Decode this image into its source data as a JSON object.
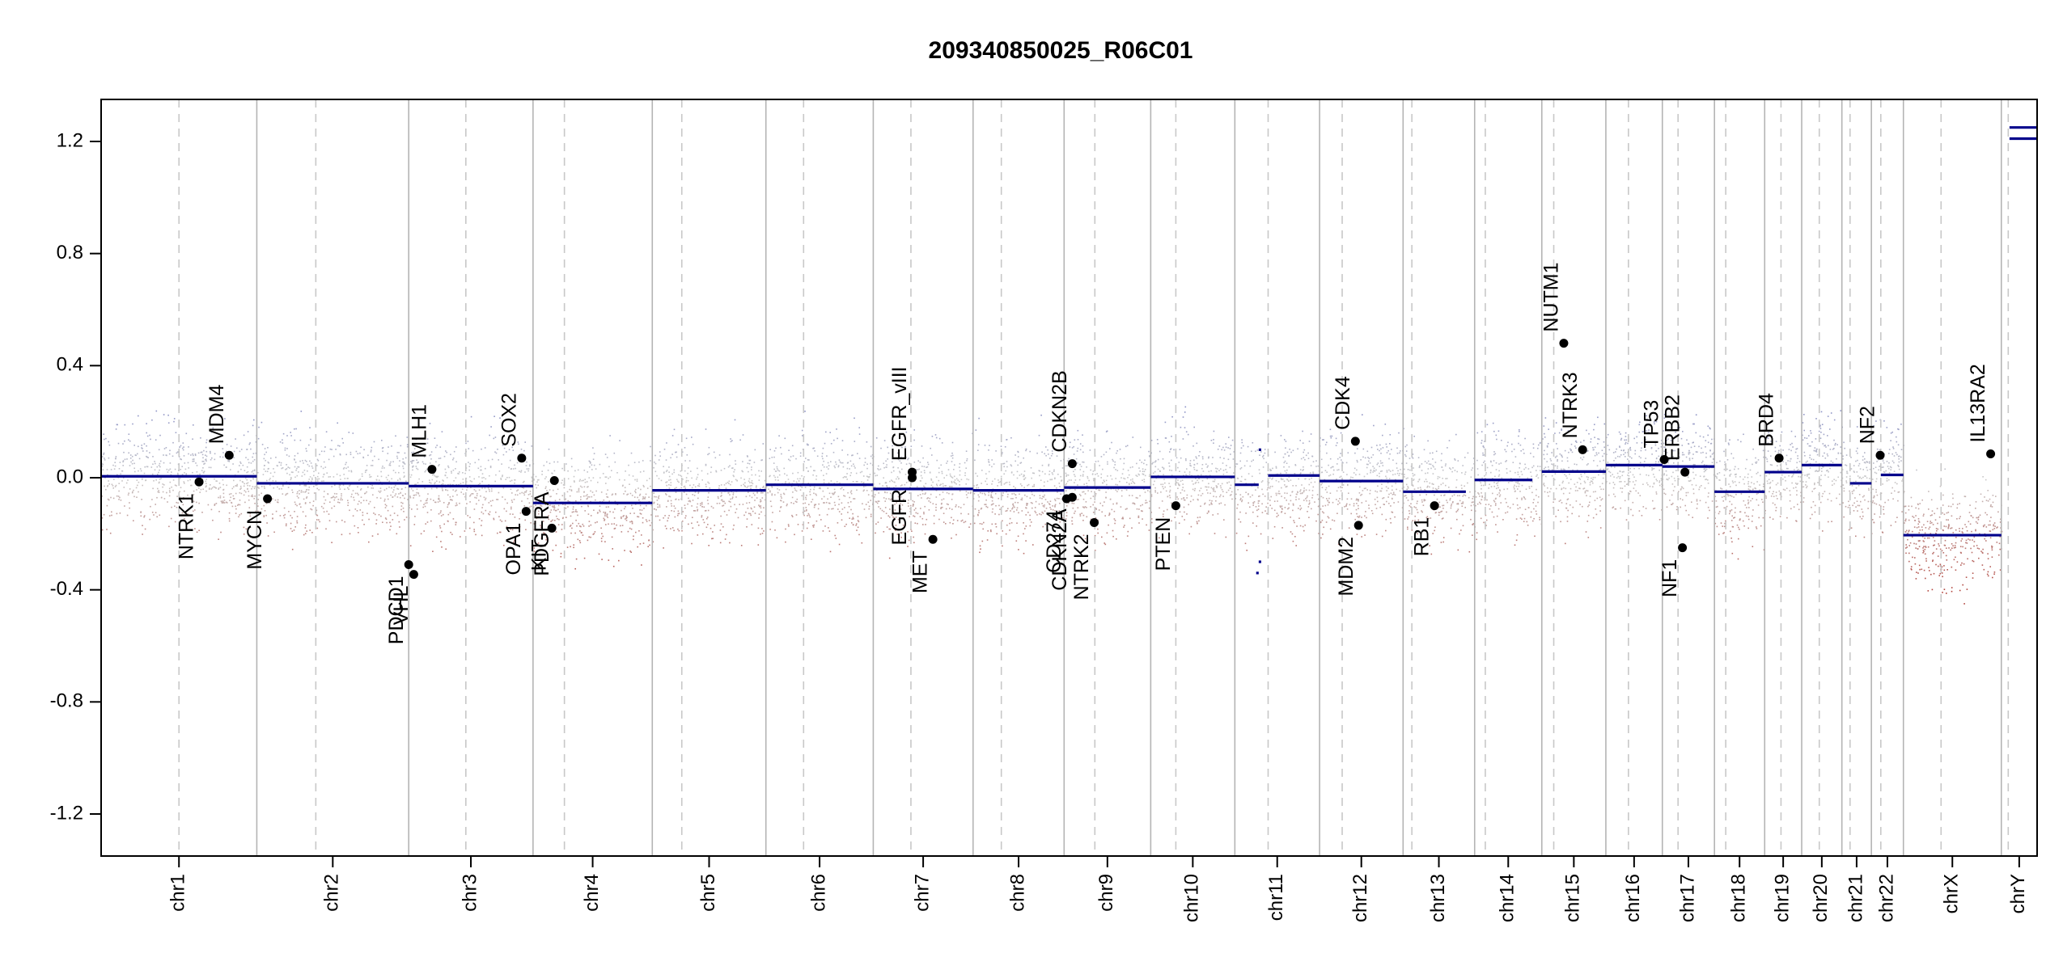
{
  "chart_data": {
    "type": "scatter",
    "title": "209340850025_R06C01",
    "xlabel": "",
    "ylabel": "",
    "ylim": [
      -1.35,
      1.35
    ],
    "y_ticks": [
      "-1.2",
      "-0.8",
      "-0.4",
      "0.0",
      "0.4",
      "0.8",
      "1.2"
    ],
    "y_tick_values": [
      -1.2,
      -0.8,
      -0.4,
      0.0,
      0.4,
      0.8,
      1.2
    ],
    "colors": {
      "gain": "#7f86c6",
      "loss": "#b2443c",
      "neutral": "#c8c8c8",
      "segment": "#00008b",
      "separator": "#b4b4b4",
      "centromere": "#c8c8c8",
      "gene": "#000000"
    },
    "chromosomes": [
      {
        "name": "chr1",
        "start": 0,
        "end": 248,
        "centromere": 124
      },
      {
        "name": "chr2",
        "start": 248,
        "end": 490,
        "centromere": 342
      },
      {
        "name": "chr3",
        "start": 490,
        "end": 688,
        "centromere": 581
      },
      {
        "name": "chr4",
        "start": 688,
        "end": 878,
        "centromere": 738
      },
      {
        "name": "chr5",
        "start": 878,
        "end": 1059,
        "centromere": 925
      },
      {
        "name": "chr6",
        "start": 1059,
        "end": 1230,
        "centromere": 1119
      },
      {
        "name": "chr7",
        "start": 1230,
        "end": 1389,
        "centromere": 1290
      },
      {
        "name": "chr8",
        "start": 1389,
        "end": 1534,
        "centromere": 1434
      },
      {
        "name": "chr9",
        "start": 1534,
        "end": 1672,
        "centromere": 1583
      },
      {
        "name": "chr10",
        "start": 1672,
        "end": 1806,
        "centromere": 1712
      },
      {
        "name": "chr11",
        "start": 1806,
        "end": 1941,
        "centromere": 1859
      },
      {
        "name": "chr12",
        "start": 1941,
        "end": 2074,
        "centromere": 1977
      },
      {
        "name": "chr13",
        "start": 2074,
        "end": 2188,
        "centromere": 2088
      },
      {
        "name": "chr14",
        "start": 2188,
        "end": 2295,
        "centromere": 2205
      },
      {
        "name": "chr15",
        "start": 2295,
        "end": 2397,
        "centromere": 2314
      },
      {
        "name": "chr16",
        "start": 2397,
        "end": 2487,
        "centromere": 2433
      },
      {
        "name": "chr17",
        "start": 2487,
        "end": 2570,
        "centromere": 2512
      },
      {
        "name": "chr18",
        "start": 2570,
        "end": 2650,
        "centromere": 2588
      },
      {
        "name": "chr19",
        "start": 2650,
        "end": 2709,
        "centromere": 2676
      },
      {
        "name": "chr20",
        "start": 2709,
        "end": 2773,
        "centromere": 2737
      },
      {
        "name": "chr21",
        "start": 2773,
        "end": 2820,
        "centromere": 2786
      },
      {
        "name": "chr22",
        "start": 2820,
        "end": 2871,
        "centromere": 2835
      },
      {
        "name": "chrX",
        "start": 2871,
        "end": 3027,
        "centromere": 2931
      },
      {
        "name": "chrY",
        "start": 3027,
        "end": 3084,
        "centromere": 3038
      }
    ],
    "segments": [
      {
        "chrom": "chr1",
        "start": 0,
        "end": 248,
        "value": 0.005
      },
      {
        "chrom": "chr2",
        "start": 248,
        "end": 490,
        "value": -0.02
      },
      {
        "chrom": "chr3",
        "start": 490,
        "end": 688,
        "value": -0.03
      },
      {
        "chrom": "chr4",
        "start": 688,
        "end": 878,
        "value": -0.09
      },
      {
        "chrom": "chr5",
        "start": 878,
        "end": 1059,
        "value": -0.045
      },
      {
        "chrom": "chr6",
        "start": 1059,
        "end": 1230,
        "value": -0.025
      },
      {
        "chrom": "chr7",
        "start": 1230,
        "end": 1389,
        "value": -0.04
      },
      {
        "chrom": "chr8",
        "start": 1389,
        "end": 1534,
        "value": -0.045
      },
      {
        "chrom": "chr9",
        "start": 1534,
        "end": 1672,
        "value": -0.035
      },
      {
        "chrom": "chr10",
        "start": 1672,
        "end": 1806,
        "value": 0.003
      },
      {
        "chrom": "chr11",
        "start": 1806,
        "end": 1844,
        "value": -0.025
      },
      {
        "chrom": "chr11",
        "start": 1844,
        "end": 1848,
        "value": 0.1
      },
      {
        "chrom": "chr11",
        "start": 1844,
        "end": 1848,
        "value": -0.3
      },
      {
        "chrom": "chr11",
        "start": 1840,
        "end": 1844,
        "value": -0.34
      },
      {
        "chrom": "chr11",
        "start": 1859,
        "end": 1941,
        "value": 0.008
      },
      {
        "chrom": "chr12",
        "start": 1941,
        "end": 2074,
        "value": -0.012
      },
      {
        "chrom": "chr13",
        "start": 2074,
        "end": 2174,
        "value": -0.05
      },
      {
        "chrom": "chr14",
        "start": 2188,
        "end": 2280,
        "value": -0.008
      },
      {
        "chrom": "chr15",
        "start": 2295,
        "end": 2397,
        "value": 0.022
      },
      {
        "chrom": "chr16",
        "start": 2397,
        "end": 2487,
        "value": 0.045
      },
      {
        "chrom": "chr17",
        "start": 2487,
        "end": 2570,
        "value": 0.04
      },
      {
        "chrom": "chr18",
        "start": 2570,
        "end": 2650,
        "value": -0.05
      },
      {
        "chrom": "chr19",
        "start": 2650,
        "end": 2709,
        "value": 0.02
      },
      {
        "chrom": "chr20",
        "start": 2709,
        "end": 2773,
        "value": 0.045
      },
      {
        "chrom": "chr21",
        "start": 2786,
        "end": 2820,
        "value": -0.02
      },
      {
        "chrom": "chr22",
        "start": 2835,
        "end": 2871,
        "value": 0.01
      },
      {
        "chrom": "chrX",
        "start": 2871,
        "end": 3027,
        "value": -0.205
      },
      {
        "chrom": "chrY",
        "start": 3040,
        "end": 3084,
        "value": 1.21
      },
      {
        "chrom": "chrY",
        "start": 3040,
        "end": 3084,
        "value": 1.25
      }
    ],
    "genes": [
      {
        "name": "NTRK1",
        "x": 156,
        "y": -0.015,
        "label_side": "below"
      },
      {
        "name": "MDM4",
        "x": 204,
        "y": 0.08,
        "label_side": "above"
      },
      {
        "name": "MYCN",
        "x": 265,
        "y": -0.075,
        "label_side": "below"
      },
      {
        "name": "PDCD1",
        "x": 490,
        "y": -0.31,
        "label_side": "below"
      },
      {
        "name": "VHL",
        "x": 498,
        "y": -0.345,
        "label_side": "below"
      },
      {
        "name": "MLH1",
        "x": 527,
        "y": 0.03,
        "label_side": "above"
      },
      {
        "name": "SOX2",
        "x": 670,
        "y": 0.07,
        "label_side": "above"
      },
      {
        "name": "OPA1",
        "x": 677,
        "y": -0.12,
        "label_side": "below"
      },
      {
        "name": "KIT",
        "x": 718,
        "y": -0.18,
        "label_side": "below"
      },
      {
        "name": "PDGFRA",
        "x": 722,
        "y": -0.01,
        "label_side": "below"
      },
      {
        "name": "EGFR",
        "x": 1292,
        "y": 0.0,
        "label_side": "below"
      },
      {
        "name": "EGFR_vIII",
        "x": 1292,
        "y": 0.02,
        "label_side": "above"
      },
      {
        "name": "MET",
        "x": 1325,
        "y": -0.22,
        "label_side": "below"
      },
      {
        "name": "CD274",
        "x": 1538,
        "y": -0.075,
        "label_side": "below"
      },
      {
        "name": "CDKN2A",
        "x": 1547,
        "y": -0.07,
        "label_side": "below"
      },
      {
        "name": "CDKN2B",
        "x": 1547,
        "y": 0.05,
        "label_side": "above"
      },
      {
        "name": "NTRK2",
        "x": 1582,
        "y": -0.16,
        "label_side": "below"
      },
      {
        "name": "PTEN",
        "x": 1712,
        "y": -0.1,
        "label_side": "below"
      },
      {
        "name": "CDK4",
        "x": 1998,
        "y": 0.13,
        "label_side": "above"
      },
      {
        "name": "MDM2",
        "x": 2003,
        "y": -0.17,
        "label_side": "below"
      },
      {
        "name": "RB1",
        "x": 2124,
        "y": -0.1,
        "label_side": "below"
      },
      {
        "name": "NUTM1",
        "x": 2330,
        "y": 0.48,
        "label_side": "above"
      },
      {
        "name": "NTRK3",
        "x": 2360,
        "y": 0.1,
        "label_side": "above"
      },
      {
        "name": "TP53",
        "x": 2490,
        "y": 0.065,
        "label_side": "above"
      },
      {
        "name": "NF1",
        "x": 2519,
        "y": -0.25,
        "label_side": "below"
      },
      {
        "name": "ERBB2",
        "x": 2523,
        "y": 0.02,
        "label_side": "above"
      },
      {
        "name": "BRD4",
        "x": 2673,
        "y": 0.07,
        "label_side": "above"
      },
      {
        "name": "NF2",
        "x": 2834,
        "y": 0.08,
        "label_side": "above"
      },
      {
        "name": "IL13RA2",
        "x": 3010,
        "y": 0.085,
        "label_side": "above"
      }
    ]
  }
}
